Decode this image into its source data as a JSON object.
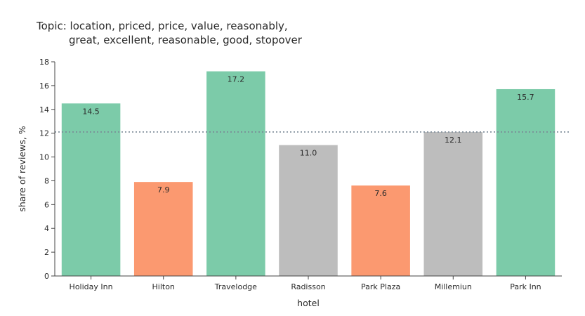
{
  "chart_data": {
    "type": "bar",
    "title_line1": "Topic: location, priced, price, value, reasonably,",
    "title_line2": "great, excellent, reasonable, good, stopover",
    "xlabel": "hotel",
    "ylabel": "share of reviews, %",
    "categories": [
      "Holiday Inn",
      "Hilton",
      "Travelodge",
      "Radisson",
      "Park Plaza",
      "Millemiun",
      "Park Inn"
    ],
    "values": [
      14.5,
      7.9,
      17.2,
      11.0,
      7.6,
      12.1,
      15.7
    ],
    "value_labels": [
      "14.5",
      "7.9",
      "17.2",
      "11.0",
      "7.6",
      "12.1",
      "15.7"
    ],
    "bar_colors": [
      "#7ccba9",
      "#fb9970",
      "#7ccba9",
      "#bdbdbd",
      "#fb9970",
      "#bdbdbd",
      "#7ccba9"
    ],
    "yticks": [
      0,
      2,
      4,
      6,
      8,
      10,
      12,
      14,
      16,
      18
    ],
    "ylim": [
      0,
      18
    ],
    "reference_line": {
      "value": 12.1,
      "style": "dotted",
      "color": "#7a8a96"
    },
    "grid": false,
    "legend": "none"
  }
}
